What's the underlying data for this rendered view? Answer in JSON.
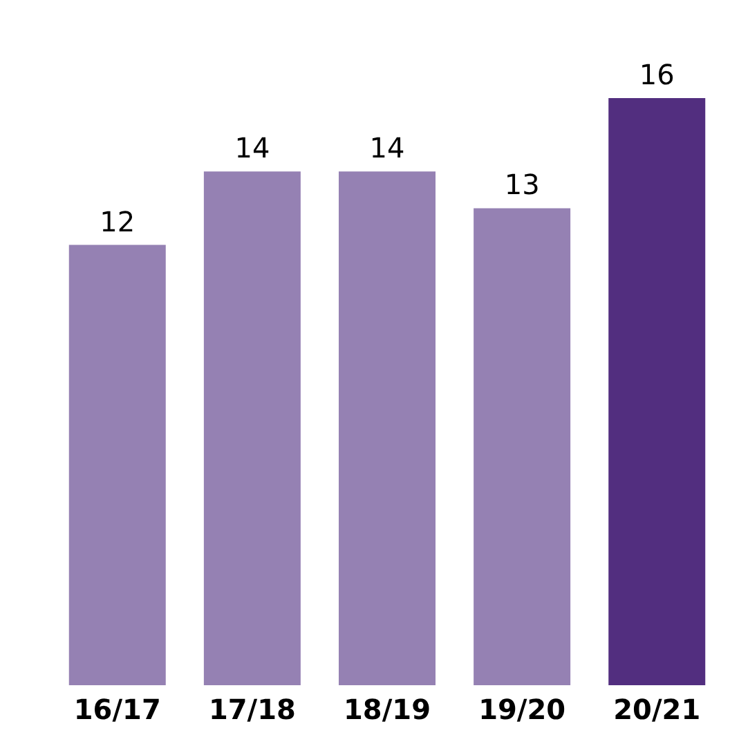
{
  "chart_data": {
    "type": "bar",
    "categories": [
      "16/17",
      "17/18",
      "18/19",
      "19/20",
      "20/21"
    ],
    "values": [
      12,
      14,
      14,
      13,
      16
    ],
    "colors": [
      "#9581b3",
      "#9581b3",
      "#9581b3",
      "#9581b3",
      "#522e7f"
    ],
    "data_labels": true
  }
}
